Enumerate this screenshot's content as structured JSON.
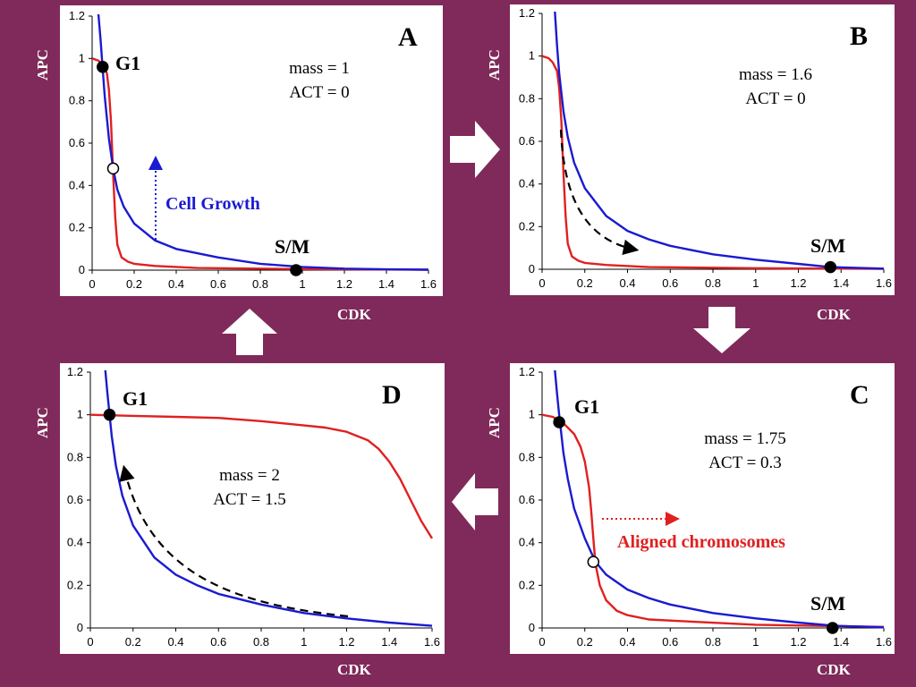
{
  "arrows": [
    "right-arrow",
    "down-arrow",
    "left-arrow",
    "up-arrow"
  ],
  "axis_labels": {
    "y": "APC",
    "x": "CDK"
  },
  "chart_data": [
    {
      "id": "A",
      "type": "line",
      "panel_label": "A",
      "xlabel": "CDK",
      "ylabel": "APC",
      "xlim": [
        0,
        1.6
      ],
      "ylim": [
        0,
        1.2
      ],
      "xticks": [
        "0",
        "0.2",
        "0.4",
        "0.6",
        "0.8",
        "1",
        "1.2",
        "1.4",
        "1.6"
      ],
      "yticks": [
        "0",
        "0.2",
        "0.4",
        "0.6",
        "0.8",
        "1",
        "1.2"
      ],
      "params": [
        "mass = 1",
        "ACT = 0"
      ],
      "series": [
        {
          "color": "#e02020",
          "x": [
            0,
            0.03,
            0.05,
            0.07,
            0.08,
            0.09,
            0.1,
            0.11,
            0.12,
            0.14,
            0.17,
            0.2,
            0.3,
            0.5,
            1.0,
            1.6
          ],
          "y": [
            1.0,
            0.99,
            0.97,
            0.93,
            0.85,
            0.7,
            0.45,
            0.25,
            0.12,
            0.06,
            0.04,
            0.03,
            0.02,
            0.01,
            0.005,
            0.002
          ]
        },
        {
          "color": "#1a1ad0",
          "x": [
            0.03,
            0.04,
            0.05,
            0.06,
            0.08,
            0.1,
            0.12,
            0.15,
            0.2,
            0.3,
            0.4,
            0.5,
            0.6,
            0.8,
            1.0,
            1.2,
            1.4,
            1.6
          ],
          "y": [
            1.21,
            1.09,
            0.95,
            0.82,
            0.62,
            0.48,
            0.38,
            0.3,
            0.22,
            0.14,
            0.1,
            0.08,
            0.06,
            0.03,
            0.015,
            0.007,
            0.004,
            0.002
          ]
        }
      ],
      "points": [
        {
          "x": 0.05,
          "y": 0.96,
          "filled": true,
          "label": "G1"
        },
        {
          "x": 0.1,
          "y": 0.48,
          "filled": false,
          "label": ""
        },
        {
          "x": 0.97,
          "y": 0.0,
          "filled": true,
          "label": "S/M"
        }
      ],
      "annotation": {
        "text": "Cell Growth",
        "color": "#1a1ad0",
        "arrow": "up-dotted"
      }
    },
    {
      "id": "B",
      "type": "line",
      "panel_label": "B",
      "xlabel": "CDK",
      "ylabel": "APC",
      "xlim": [
        0,
        1.6
      ],
      "ylim": [
        0,
        1.2
      ],
      "xticks": [
        "0",
        "0.2",
        "0.4",
        "0.6",
        "0.8",
        "1",
        "1.2",
        "1.4",
        "1.6"
      ],
      "yticks": [
        "0",
        "0.2",
        "0.4",
        "0.6",
        "0.8",
        "1",
        "1.2"
      ],
      "params": [
        "mass = 1.6",
        "ACT = 0"
      ],
      "series": [
        {
          "color": "#e02020",
          "x": [
            0,
            0.03,
            0.05,
            0.07,
            0.08,
            0.09,
            0.1,
            0.11,
            0.12,
            0.14,
            0.17,
            0.2,
            0.3,
            0.5,
            1.0,
            1.6
          ],
          "y": [
            1.0,
            0.99,
            0.97,
            0.93,
            0.85,
            0.7,
            0.45,
            0.25,
            0.12,
            0.06,
            0.04,
            0.03,
            0.02,
            0.01,
            0.005,
            0.002
          ]
        },
        {
          "color": "#1a1ad0",
          "x": [
            0.06,
            0.07,
            0.08,
            0.1,
            0.12,
            0.15,
            0.2,
            0.3,
            0.4,
            0.5,
            0.6,
            0.8,
            1.0,
            1.2,
            1.35,
            1.6
          ],
          "y": [
            1.21,
            1.05,
            0.92,
            0.74,
            0.62,
            0.5,
            0.38,
            0.25,
            0.18,
            0.14,
            0.11,
            0.07,
            0.045,
            0.025,
            0.01,
            0.003
          ]
        }
      ],
      "points": [
        {
          "x": 1.35,
          "y": 0.01,
          "filled": true,
          "label": "S/M"
        }
      ],
      "annotation": {
        "text": "",
        "color": "#000000",
        "arrow": "dashed-curve"
      }
    },
    {
      "id": "C",
      "type": "line",
      "panel_label": "C",
      "xlabel": "CDK",
      "ylabel": "APC",
      "xlim": [
        0,
        1.6
      ],
      "ylim": [
        0,
        1.2
      ],
      "xticks": [
        "0",
        "0.2",
        "0.4",
        "0.6",
        "0.8",
        "1",
        "1.2",
        "1.4",
        "1.6"
      ],
      "yticks": [
        "0",
        "0.2",
        "0.4",
        "0.6",
        "0.8",
        "1",
        "1.2"
      ],
      "params": [
        "mass = 1.75",
        "ACT = 0.3"
      ],
      "series": [
        {
          "color": "#e02020",
          "x": [
            0,
            0.05,
            0.1,
            0.15,
            0.18,
            0.2,
            0.22,
            0.23,
            0.24,
            0.25,
            0.27,
            0.3,
            0.35,
            0.4,
            0.5,
            0.7,
            1.0,
            1.6
          ],
          "y": [
            1.0,
            0.99,
            0.96,
            0.91,
            0.85,
            0.78,
            0.66,
            0.55,
            0.42,
            0.3,
            0.2,
            0.13,
            0.08,
            0.06,
            0.04,
            0.03,
            0.015,
            0.005
          ]
        },
        {
          "color": "#1a1ad0",
          "x": [
            0.06,
            0.07,
            0.08,
            0.1,
            0.12,
            0.15,
            0.2,
            0.25,
            0.3,
            0.4,
            0.5,
            0.6,
            0.8,
            1.0,
            1.2,
            1.37,
            1.6
          ],
          "y": [
            1.21,
            1.1,
            1.0,
            0.82,
            0.7,
            0.56,
            0.42,
            0.31,
            0.25,
            0.18,
            0.14,
            0.11,
            0.07,
            0.045,
            0.025,
            0.01,
            0.003
          ]
        }
      ],
      "points": [
        {
          "x": 0.08,
          "y": 0.965,
          "filled": true,
          "label": "G1"
        },
        {
          "x": 0.24,
          "y": 0.31,
          "filled": false,
          "label": ""
        },
        {
          "x": 1.36,
          "y": 0.0,
          "filled": true,
          "label": "S/M"
        }
      ],
      "annotation": {
        "text": "Aligned chromosomes",
        "color": "#e02020",
        "arrow": "right-dotted"
      }
    },
    {
      "id": "D",
      "type": "line",
      "panel_label": "D",
      "xlabel": "CDK",
      "ylabel": "APC",
      "xlim": [
        0,
        1.6
      ],
      "ylim": [
        0,
        1.2
      ],
      "xticks": [
        "0",
        "0.2",
        "0.4",
        "0.6",
        "0.8",
        "1",
        "1.2",
        "1.4",
        "1.6"
      ],
      "yticks": [
        "0",
        "0.2",
        "0.4",
        "0.6",
        "0.8",
        "1",
        "1.2"
      ],
      "params": [
        "mass = 2",
        "ACT = 1.5"
      ],
      "series": [
        {
          "color": "#e02020",
          "x": [
            0,
            0.2,
            0.4,
            0.6,
            0.8,
            1.0,
            1.1,
            1.2,
            1.3,
            1.35,
            1.4,
            1.45,
            1.5,
            1.55,
            1.6
          ],
          "y": [
            1.0,
            0.995,
            0.99,
            0.985,
            0.97,
            0.95,
            0.94,
            0.92,
            0.88,
            0.84,
            0.78,
            0.7,
            0.6,
            0.5,
            0.42
          ]
        },
        {
          "color": "#1a1ad0",
          "x": [
            0.07,
            0.08,
            0.09,
            0.1,
            0.12,
            0.15,
            0.2,
            0.3,
            0.4,
            0.5,
            0.6,
            0.8,
            1.0,
            1.2,
            1.4,
            1.6
          ],
          "y": [
            1.21,
            1.1,
            1.0,
            0.9,
            0.76,
            0.62,
            0.48,
            0.33,
            0.25,
            0.2,
            0.16,
            0.11,
            0.07,
            0.045,
            0.025,
            0.01
          ]
        }
      ],
      "points": [
        {
          "x": 0.09,
          "y": 1.0,
          "filled": true,
          "label": "G1"
        }
      ],
      "annotation": {
        "text": "",
        "color": "#000000",
        "arrow": "dashed-curve-up"
      }
    }
  ]
}
